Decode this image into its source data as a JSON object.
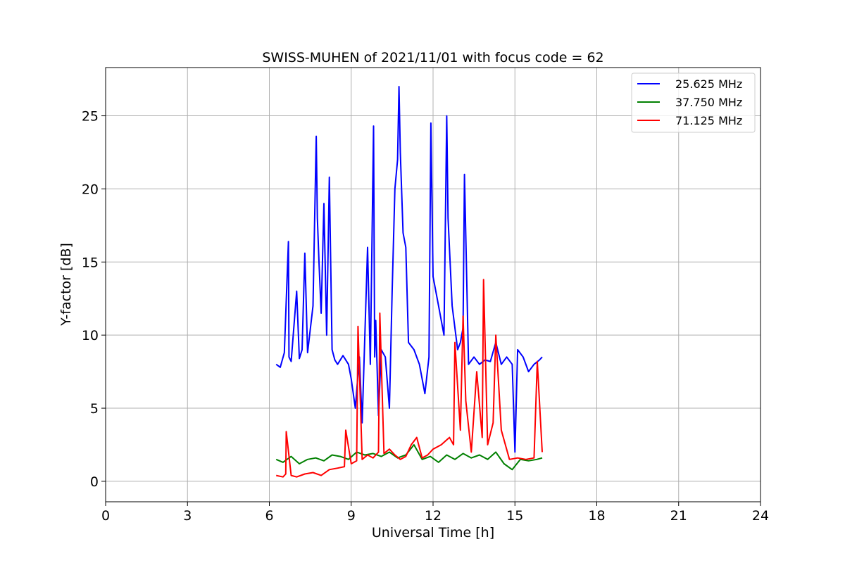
{
  "chart_data": {
    "type": "line",
    "title": "SWISS-MUHEN of 2021/11/01 with focus code = 62",
    "xlabel": "Universal Time [h]",
    "ylabel": "Y-factor [dB]",
    "xlim": [
      0,
      24
    ],
    "ylim": [
      -1.4,
      28.3
    ],
    "xticks": [
      0,
      3,
      6,
      9,
      12,
      15,
      18,
      21,
      24
    ],
    "yticks": [
      0,
      5,
      10,
      15,
      20,
      25
    ],
    "grid": true,
    "legend_position": "top-right",
    "series": [
      {
        "name": "25.625 MHz",
        "color": "#0000ff",
        "x": [
          6.25,
          6.4,
          6.55,
          6.7,
          6.72,
          6.8,
          7.0,
          7.1,
          7.2,
          7.3,
          7.4,
          7.6,
          7.72,
          7.76,
          7.82,
          7.9,
          8.0,
          8.1,
          8.2,
          8.3,
          8.4,
          8.5,
          8.7,
          8.9,
          9.0,
          9.15,
          9.3,
          9.4,
          9.6,
          9.7,
          9.82,
          9.86,
          9.9,
          10.0,
          10.1,
          10.25,
          10.4,
          10.5,
          10.6,
          10.7,
          10.75,
          10.8,
          10.9,
          11.0,
          11.1,
          11.3,
          11.5,
          11.7,
          11.85,
          11.92,
          12.0,
          12.2,
          12.4,
          12.5,
          12.55,
          12.7,
          12.9,
          13.0,
          13.1,
          13.15,
          13.3,
          13.5,
          13.7,
          13.9,
          14.1,
          14.3,
          14.5,
          14.7,
          14.9,
          15.0,
          15.1,
          15.3,
          15.5,
          15.7,
          15.9,
          16.0
        ],
        "y": [
          8.0,
          7.8,
          8.8,
          16.4,
          8.5,
          8.2,
          13.0,
          8.4,
          9.0,
          15.6,
          8.8,
          12.0,
          23.6,
          18.0,
          15.0,
          11.5,
          19.0,
          10.0,
          20.8,
          9.0,
          8.3,
          8.0,
          8.6,
          8.0,
          7.0,
          5.0,
          8.5,
          4.0,
          16.0,
          8.0,
          24.3,
          8.5,
          11.0,
          4.5,
          9.0,
          8.5,
          5.0,
          13.0,
          20.0,
          22.0,
          27.0,
          22.5,
          17.0,
          16.0,
          9.5,
          9.0,
          8.0,
          6.0,
          8.5,
          24.5,
          14.0,
          12.0,
          10.0,
          25.0,
          18.0,
          12.0,
          9.0,
          9.5,
          10.5,
          21.0,
          8.0,
          8.5,
          8.0,
          8.3,
          8.2,
          9.5,
          8.0,
          8.5,
          8.0,
          2.0,
          9.0,
          8.5,
          7.5,
          8.0,
          8.3,
          8.5
        ]
      },
      {
        "name": "37.750 MHz",
        "color": "#008000",
        "x": [
          6.25,
          6.5,
          6.8,
          7.1,
          7.4,
          7.7,
          8.0,
          8.3,
          8.6,
          8.9,
          9.2,
          9.5,
          9.8,
          10.1,
          10.4,
          10.7,
          11.0,
          11.3,
          11.6,
          11.9,
          12.2,
          12.5,
          12.8,
          13.1,
          13.4,
          13.7,
          14.0,
          14.3,
          14.6,
          14.9,
          15.2,
          15.5,
          15.8,
          16.0
        ],
        "y": [
          1.5,
          1.3,
          1.7,
          1.2,
          1.5,
          1.6,
          1.4,
          1.8,
          1.7,
          1.5,
          2.0,
          1.8,
          1.9,
          1.7,
          2.0,
          1.6,
          1.8,
          2.5,
          1.5,
          1.7,
          1.3,
          1.8,
          1.5,
          1.9,
          1.6,
          1.8,
          1.5,
          2.0,
          1.2,
          0.8,
          1.5,
          1.4,
          1.5,
          1.6
        ]
      },
      {
        "name": "71.125 MHz",
        "color": "#ff0000",
        "x": [
          6.25,
          6.5,
          6.6,
          6.62,
          6.8,
          7.0,
          7.3,
          7.6,
          7.9,
          8.2,
          8.5,
          8.75,
          8.8,
          9.0,
          9.2,
          9.25,
          9.4,
          9.6,
          9.8,
          10.0,
          10.05,
          10.2,
          10.4,
          10.6,
          10.8,
          11.0,
          11.2,
          11.4,
          11.6,
          11.8,
          12.0,
          12.3,
          12.6,
          12.75,
          12.8,
          13.0,
          13.1,
          13.2,
          13.4,
          13.6,
          13.8,
          13.85,
          14.0,
          14.2,
          14.3,
          14.5,
          14.8,
          15.1,
          15.4,
          15.7,
          15.82,
          16.0
        ],
        "y": [
          0.4,
          0.3,
          0.5,
          3.4,
          0.4,
          0.3,
          0.5,
          0.6,
          0.4,
          0.8,
          0.9,
          1.0,
          3.5,
          1.2,
          1.4,
          10.6,
          1.5,
          1.8,
          1.6,
          2.0,
          11.5,
          1.9,
          2.2,
          1.8,
          1.5,
          1.7,
          2.5,
          3.0,
          1.6,
          1.8,
          2.2,
          2.5,
          3.0,
          2.5,
          9.5,
          3.5,
          11.3,
          5.5,
          2.0,
          7.5,
          3.0,
          13.8,
          2.5,
          4.0,
          10.0,
          3.5,
          1.5,
          1.6,
          1.5,
          1.6,
          8.2,
          2.0
        ]
      }
    ]
  }
}
